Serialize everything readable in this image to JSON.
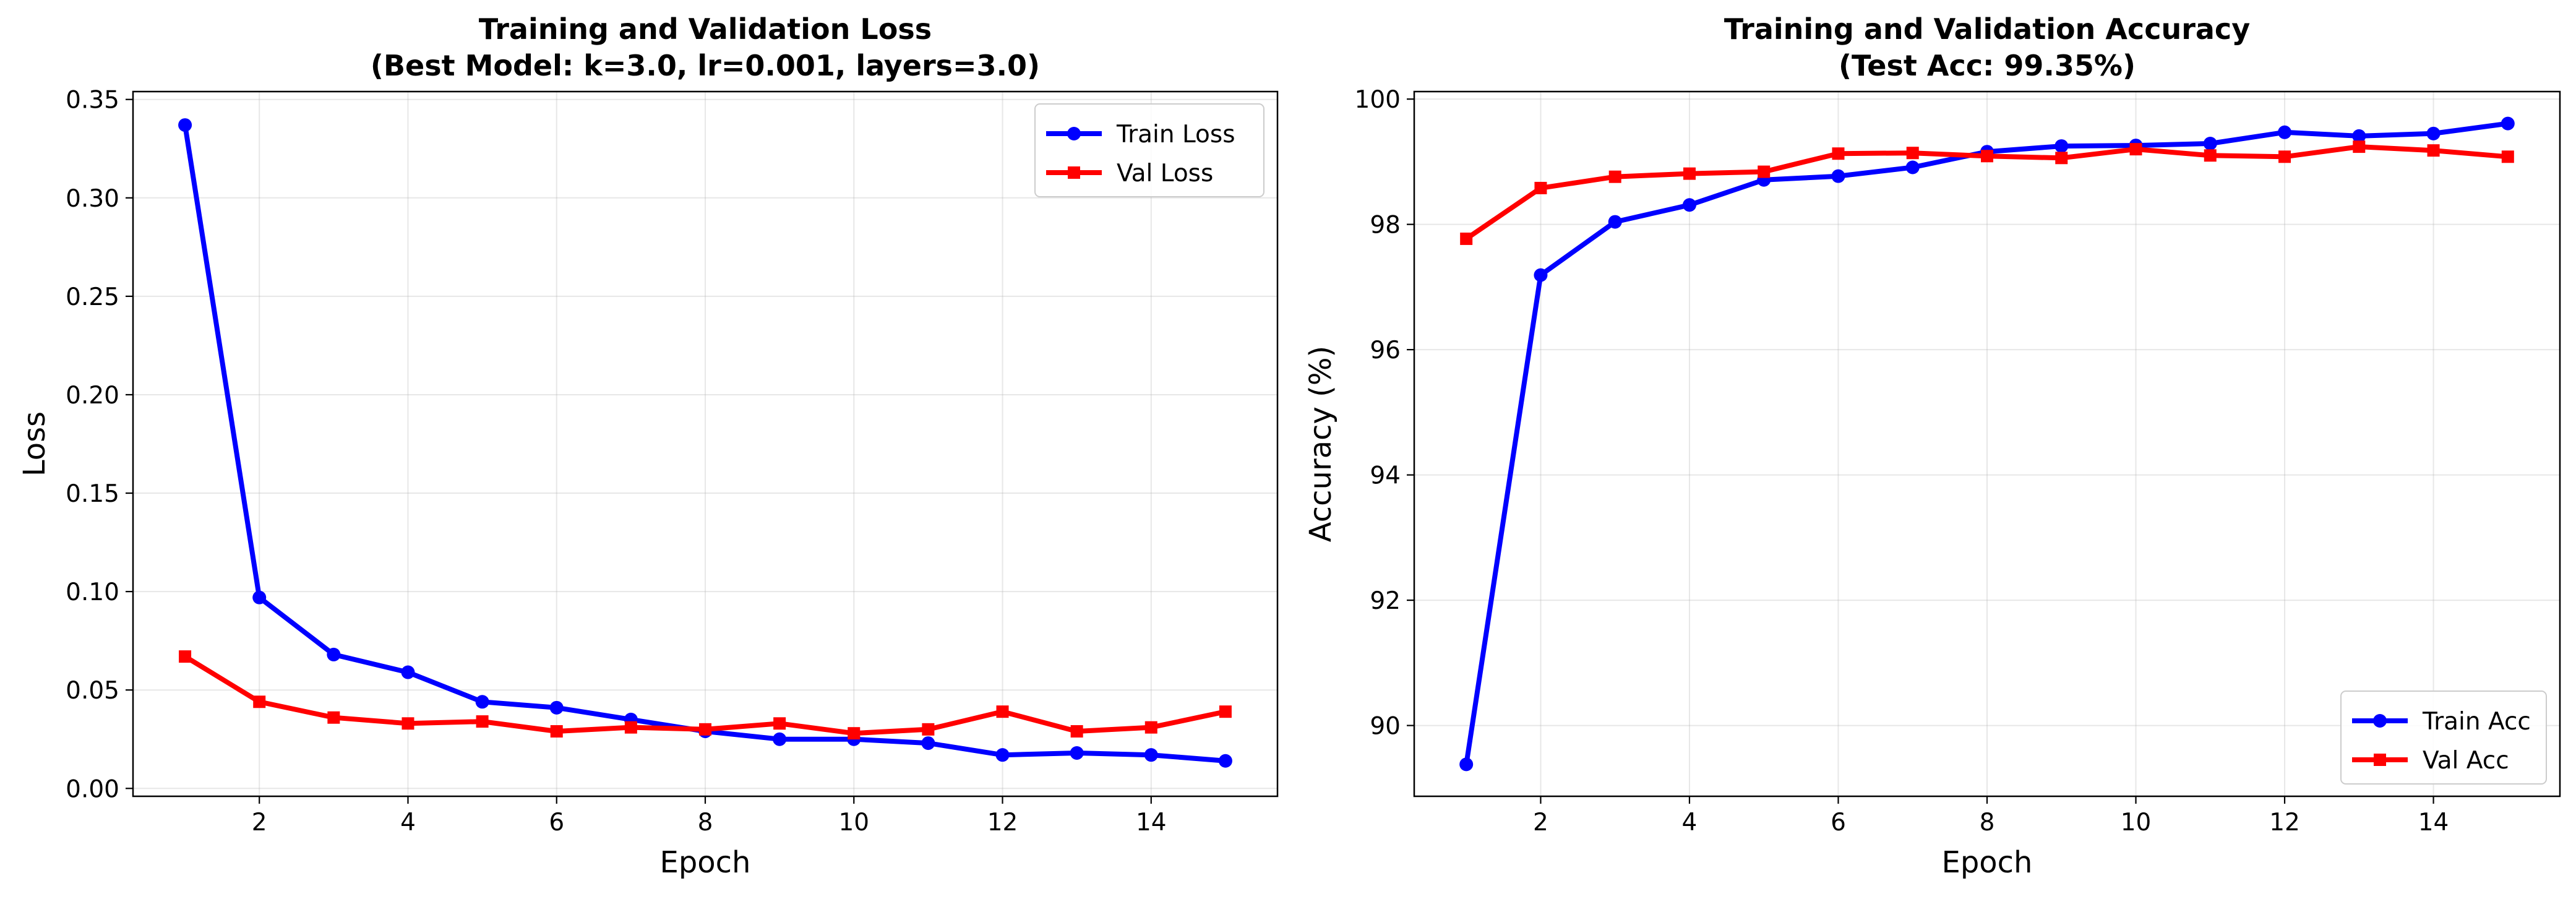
{
  "chart_data": [
    {
      "type": "line",
      "title": "Training and Validation Loss",
      "subtitle": "(Best Model: k=3.0, lr=0.001, layers=3.0)",
      "xlabel": "Epoch",
      "ylabel": "Loss",
      "xlim": [
        0.3,
        15.7
      ],
      "ylim": [
        -0.004,
        0.354
      ],
      "xticks": [
        2,
        4,
        6,
        8,
        10,
        12,
        14
      ],
      "xtick_labels": [
        "2",
        "4",
        "6",
        "8",
        "10",
        "12",
        "14"
      ],
      "yticks": [
        0.0,
        0.05,
        0.1,
        0.15,
        0.2,
        0.25,
        0.3,
        0.35
      ],
      "ytick_labels": [
        "0.00",
        "0.05",
        "0.10",
        "0.15",
        "0.20",
        "0.25",
        "0.30",
        "0.35"
      ],
      "grid": true,
      "legend_position": "upper right",
      "x": [
        1,
        2,
        3,
        4,
        5,
        6,
        7,
        8,
        9,
        10,
        11,
        12,
        13,
        14,
        15
      ],
      "series": [
        {
          "name": "Train Loss",
          "color": "#0000ff",
          "marker": "circle",
          "values": [
            0.337,
            0.097,
            0.068,
            0.059,
            0.044,
            0.041,
            0.035,
            0.029,
            0.025,
            0.025,
            0.023,
            0.017,
            0.018,
            0.017,
            0.014
          ]
        },
        {
          "name": "Val Loss",
          "color": "#ff0000",
          "marker": "square",
          "values": [
            0.067,
            0.044,
            0.036,
            0.033,
            0.034,
            0.029,
            0.031,
            0.03,
            0.033,
            0.028,
            0.03,
            0.039,
            0.029,
            0.031,
            0.039
          ]
        }
      ]
    },
    {
      "type": "line",
      "title": "Training and Validation Accuracy",
      "subtitle": "(Test Acc: 99.35%)",
      "xlabel": "Epoch",
      "ylabel": "Accuracy (%)",
      "xlim": [
        0.3,
        15.7
      ],
      "ylim": [
        88.87,
        100.12
      ],
      "xticks": [
        2,
        4,
        6,
        8,
        10,
        12,
        14
      ],
      "xtick_labels": [
        "2",
        "4",
        "6",
        "8",
        "10",
        "12",
        "14"
      ],
      "yticks": [
        90,
        92,
        94,
        96,
        98,
        100
      ],
      "ytick_labels": [
        "90",
        "92",
        "94",
        "96",
        "98",
        "100"
      ],
      "grid": true,
      "legend_position": "lower right",
      "x": [
        1,
        2,
        3,
        4,
        5,
        6,
        7,
        8,
        9,
        10,
        11,
        12,
        13,
        14,
        15
      ],
      "series": [
        {
          "name": "Train Acc",
          "color": "#0000ff",
          "marker": "circle",
          "values": [
            89.38,
            97.19,
            98.04,
            98.31,
            98.71,
            98.77,
            98.91,
            99.16,
            99.25,
            99.26,
            99.29,
            99.47,
            99.41,
            99.45,
            99.61
          ]
        },
        {
          "name": "Val Acc",
          "color": "#ff0000",
          "marker": "square",
          "values": [
            97.77,
            98.58,
            98.76,
            98.81,
            98.84,
            99.13,
            99.14,
            99.09,
            99.06,
            99.2,
            99.1,
            99.08,
            99.24,
            99.18,
            99.08
          ]
        }
      ]
    }
  ]
}
